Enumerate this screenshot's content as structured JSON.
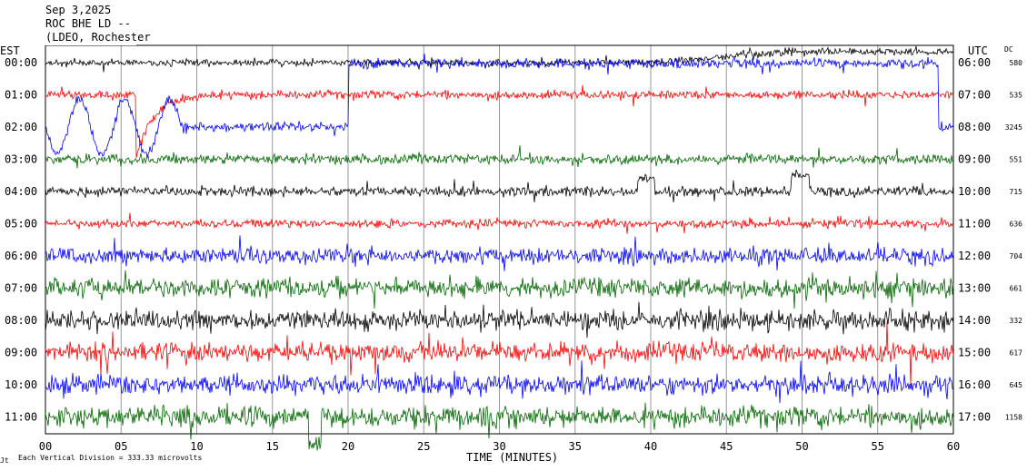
{
  "header": {
    "date": "Sep 3,2025",
    "station": "ROC BHE LD --",
    "org": "(LDEO, Rochester"
  },
  "left_zone": "EST",
  "right_zone": "UTC",
  "dc_header": "DC",
  "footer": {
    "note": "Each Vertical Division =  333.33 microvolts",
    "corner_mark": "Jt"
  },
  "chart_data": {
    "type": "line",
    "xlabel": "TIME (MINUTES)",
    "xlim": [
      0,
      60
    ],
    "x_ticks": [
      "00",
      "05",
      "10",
      "15",
      "20",
      "25",
      "30",
      "35",
      "40",
      "45",
      "50",
      "55",
      "60"
    ],
    "rows": [
      {
        "est": "00:00",
        "utc": "06:00",
        "dc": "580",
        "color": "#000000"
      },
      {
        "est": "01:00",
        "utc": "07:00",
        "dc": "535",
        "color": "#ff0000"
      },
      {
        "est": "02:00",
        "utc": "08:00",
        "dc": "3245",
        "color": "#0000ff"
      },
      {
        "est": "03:00",
        "utc": "09:00",
        "dc": "551",
        "color": "#006400"
      },
      {
        "est": "04:00",
        "utc": "10:00",
        "dc": "715",
        "color": "#000000"
      },
      {
        "est": "05:00",
        "utc": "11:00",
        "dc": "636",
        "color": "#ff0000"
      },
      {
        "est": "06:00",
        "utc": "12:00",
        "dc": "704",
        "color": "#0000ff"
      },
      {
        "est": "07:00",
        "utc": "13:00",
        "dc": "661",
        "color": "#006400"
      },
      {
        "est": "08:00",
        "utc": "14:00",
        "dc": "332",
        "color": "#000000"
      },
      {
        "est": "09:00",
        "utc": "15:00",
        "dc": "617",
        "color": "#ff0000"
      },
      {
        "est": "10:00",
        "utc": "16:00",
        "dc": "645",
        "color": "#0000ff"
      },
      {
        "est": "11:00",
        "utc": "17:00",
        "dc": "1158",
        "color": "#006400"
      }
    ]
  }
}
